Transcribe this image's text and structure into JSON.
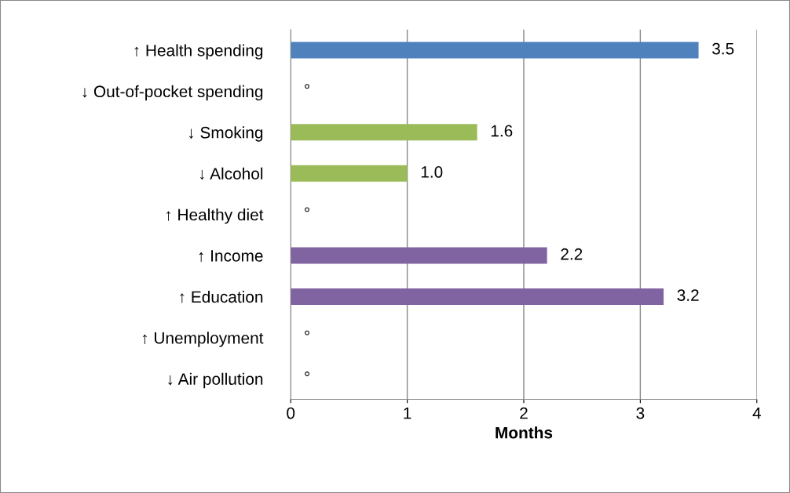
{
  "chart_data": {
    "type": "bar",
    "orientation": "horizontal",
    "xlabel": "Months",
    "categories": [
      "↑ Health spending",
      "↓ Out-of-pocket spending",
      "↓ Smoking",
      "↓ Alcohol",
      "↑ Healthy diet",
      "↑ Income",
      "↑ Education",
      "↑ Unemployment",
      "↓ Air pollution"
    ],
    "values": [
      3.5,
      0,
      1.6,
      1.0,
      0,
      2.2,
      3.2,
      0,
      0
    ],
    "value_labels": [
      "3.5",
      "°",
      "1.6",
      "1.0",
      "°",
      "2.2",
      "3.2",
      "°",
      "°"
    ],
    "colors": [
      "#4f81bd",
      "#4f81bd",
      "#9bbb59",
      "#9bbb59",
      "#9bbb59",
      "#8064a2",
      "#8064a2",
      "#8064a2",
      "#8064a2"
    ],
    "xlim": [
      0,
      4
    ],
    "xticks": [
      0,
      1,
      2,
      3,
      4
    ],
    "grid": "x"
  }
}
